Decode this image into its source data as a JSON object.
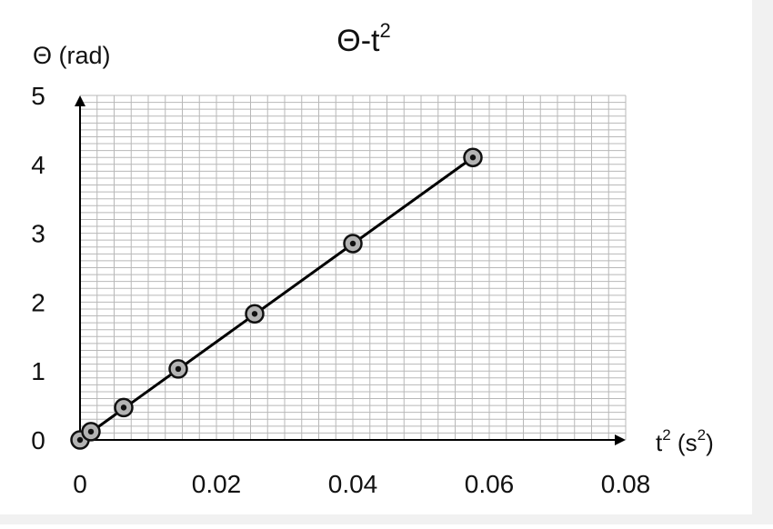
{
  "chart_data": {
    "type": "scatter",
    "title": "Θ-t",
    "title_superscript": "2",
    "ylabel": "Θ (rad)",
    "xlabel": "t",
    "xlabel_sup": "2",
    "xlabel_unit_open": " (s",
    "xlabel_unit_sup": "2",
    "xlabel_unit_close": ")",
    "xlim": [
      0,
      0.08
    ],
    "ylim": [
      0,
      5
    ],
    "x_ticks": [
      0,
      0.02,
      0.04,
      0.06,
      0.08
    ],
    "x_tick_labels": [
      "0",
      "0.02",
      "0.04",
      "0.06",
      "0.08"
    ],
    "y_ticks": [
      0,
      1,
      2,
      3,
      4,
      5
    ],
    "y_tick_labels": [
      "0",
      "1",
      "2",
      "3",
      "4",
      "5"
    ],
    "grid": true,
    "series": [
      {
        "x": [
          0,
          0.0016,
          0.0064,
          0.0144,
          0.0256,
          0.04,
          0.0576
        ],
        "y": [
          0,
          0.12,
          0.47,
          1.03,
          1.83,
          2.85,
          4.1
        ]
      }
    ],
    "fit_line": {
      "x": [
        0,
        0.0576
      ],
      "y": [
        0,
        4.1
      ]
    },
    "colors": {
      "grid": "#b8b8b8",
      "line": "#000000",
      "marker_fill": "#b3b3b3"
    }
  }
}
